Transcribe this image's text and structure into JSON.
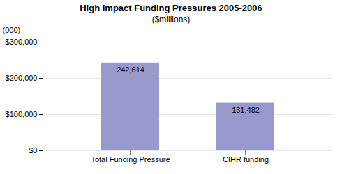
{
  "chart_data": {
    "type": "bar",
    "title": "High Impact Funding Pressures 2005-2006",
    "subtitle": "($millions)",
    "ylabel": "(000)",
    "categories": [
      "Total Funding Pressure",
      "CIHR funding"
    ],
    "values": [
      242614,
      131482
    ],
    "value_labels": [
      "242,614",
      "131,482"
    ],
    "data_labels": true,
    "color": "#9999CC",
    "ylim": [
      0,
      300000
    ],
    "yticks": [
      {
        "value": 0,
        "label": "$0"
      },
      {
        "value": 100000,
        "label": "$100,000"
      },
      {
        "value": 200000,
        "label": "$200,000"
      },
      {
        "value": 300000,
        "label": "$300,000"
      }
    ],
    "grid": true
  }
}
